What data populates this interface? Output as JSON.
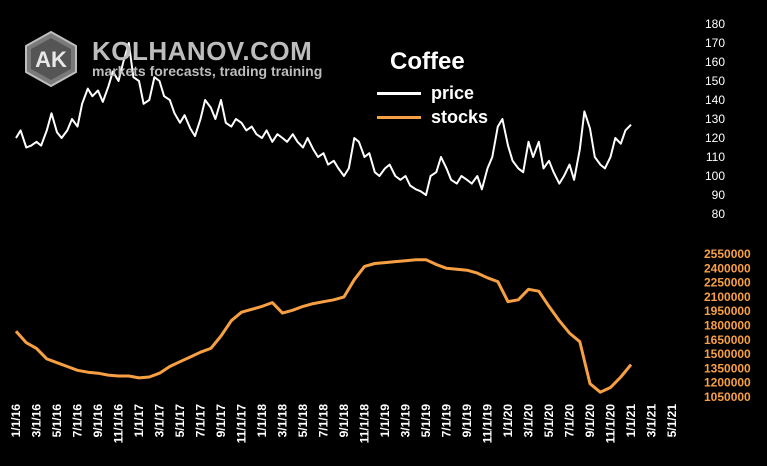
{
  "brand": {
    "logo_text": "AK",
    "name": "KOLHANOV.COM",
    "tagline": "markets forecasts, trading training"
  },
  "colors": {
    "background": "#000000",
    "price": "#ffffff",
    "stocks": "#f7a043",
    "price_axis": "#ffffff",
    "stocks_axis": "#f7a043",
    "brand_text": "#bdbdbd"
  },
  "chart_data": {
    "type": "line",
    "title": "Coffee",
    "legend": {
      "placement": "top-center"
    },
    "grid": false,
    "x_ticks": [
      "1/1/16",
      "3/1/16",
      "5/1/16",
      "7/1/16",
      "9/1/16",
      "11/1/16",
      "1/1/17",
      "3/1/17",
      "5/1/17",
      "7/1/17",
      "9/1/17",
      "11/1/17",
      "1/1/18",
      "3/1/18",
      "5/1/18",
      "7/1/18",
      "9/1/18",
      "11/1/18",
      "1/1/19",
      "3/1/19",
      "5/1/19",
      "7/1/19",
      "9/1/19",
      "11/1/19",
      "1/1/20",
      "3/1/20",
      "5/1/20",
      "7/1/20",
      "9/1/20",
      "11/1/20",
      "1/1/21",
      "3/1/21",
      "5/1/21"
    ],
    "price_axis": {
      "ylim": [
        80,
        180
      ],
      "ticks": [
        180,
        170,
        160,
        150,
        140,
        130,
        120,
        110,
        100,
        90,
        80
      ]
    },
    "stocks_axis": {
      "ylim": [
        1050000,
        2550000
      ],
      "ticks": [
        2550000,
        2400000,
        2250000,
        2100000,
        1950000,
        1800000,
        1650000,
        1500000,
        1350000,
        1200000,
        1050000
      ]
    },
    "series": [
      {
        "name": "price",
        "axis": "price",
        "values": [
          [
            "1/1/16",
            120
          ],
          [
            "1/15/16",
            124
          ],
          [
            "2/1/16",
            115
          ],
          [
            "2/15/16",
            116
          ],
          [
            "3/1/16",
            118
          ],
          [
            "3/15/16",
            116
          ],
          [
            "4/1/16",
            124
          ],
          [
            "4/15/16",
            133
          ],
          [
            "5/1/16",
            123
          ],
          [
            "5/15/16",
            120
          ],
          [
            "6/1/16",
            124
          ],
          [
            "6/15/16",
            130
          ],
          [
            "7/1/16",
            126
          ],
          [
            "7/15/16",
            138
          ],
          [
            "8/1/16",
            146
          ],
          [
            "8/15/16",
            142
          ],
          [
            "9/1/16",
            145
          ],
          [
            "9/15/16",
            139
          ],
          [
            "10/1/16",
            147
          ],
          [
            "10/15/16",
            155
          ],
          [
            "11/1/16",
            150
          ],
          [
            "11/15/16",
            160
          ],
          [
            "12/1/16",
            170
          ],
          [
            "12/15/16",
            152
          ],
          [
            "1/1/17",
            150
          ],
          [
            "1/15/17",
            138
          ],
          [
            "2/1/17",
            140
          ],
          [
            "2/15/17",
            152
          ],
          [
            "3/1/17",
            150
          ],
          [
            "3/15/17",
            142
          ],
          [
            "4/1/17",
            140
          ],
          [
            "4/15/17",
            133
          ],
          [
            "5/1/17",
            128
          ],
          [
            "5/15/17",
            132
          ],
          [
            "6/1/17",
            125
          ],
          [
            "6/15/17",
            121
          ],
          [
            "7/1/17",
            130
          ],
          [
            "7/15/17",
            140
          ],
          [
            "8/1/17",
            136
          ],
          [
            "8/15/17",
            130
          ],
          [
            "9/1/17",
            140
          ],
          [
            "9/15/17",
            128
          ],
          [
            "10/1/17",
            126
          ],
          [
            "10/15/17",
            130
          ],
          [
            "11/1/17",
            128
          ],
          [
            "11/15/17",
            124
          ],
          [
            "12/1/17",
            126
          ],
          [
            "12/15/17",
            122
          ],
          [
            "1/1/18",
            120
          ],
          [
            "1/15/18",
            124
          ],
          [
            "2/1/18",
            118
          ],
          [
            "2/15/18",
            122
          ],
          [
            "3/1/18",
            120
          ],
          [
            "3/15/18",
            118
          ],
          [
            "4/1/18",
            122
          ],
          [
            "4/15/18",
            118
          ],
          [
            "5/1/18",
            115
          ],
          [
            "5/15/18",
            120
          ],
          [
            "6/1/18",
            114
          ],
          [
            "6/15/18",
            110
          ],
          [
            "7/1/18",
            112
          ],
          [
            "7/15/18",
            106
          ],
          [
            "8/1/18",
            108
          ],
          [
            "8/15/18",
            104
          ],
          [
            "9/1/18",
            100
          ],
          [
            "9/15/18",
            104
          ],
          [
            "10/1/18",
            120
          ],
          [
            "10/15/18",
            118
          ],
          [
            "11/1/18",
            110
          ],
          [
            "11/15/18",
            112
          ],
          [
            "12/1/18",
            102
          ],
          [
            "12/15/18",
            100
          ],
          [
            "1/1/19",
            104
          ],
          [
            "1/15/19",
            106
          ],
          [
            "2/1/19",
            100
          ],
          [
            "2/15/19",
            98
          ],
          [
            "3/1/19",
            100
          ],
          [
            "3/15/19",
            95
          ],
          [
            "4/1/19",
            93
          ],
          [
            "4/15/19",
            92
          ],
          [
            "5/1/19",
            90
          ],
          [
            "5/15/19",
            100
          ],
          [
            "6/1/19",
            102
          ],
          [
            "6/15/19",
            110
          ],
          [
            "7/1/19",
            104
          ],
          [
            "7/15/19",
            98
          ],
          [
            "8/1/19",
            96
          ],
          [
            "8/15/19",
            100
          ],
          [
            "9/1/19",
            98
          ],
          [
            "9/15/19",
            96
          ],
          [
            "10/1/19",
            100
          ],
          [
            "10/15/19",
            93
          ],
          [
            "11/1/19",
            104
          ],
          [
            "11/15/19",
            110
          ],
          [
            "12/1/19",
            126
          ],
          [
            "12/15/19",
            130
          ],
          [
            "1/1/20",
            116
          ],
          [
            "1/15/20",
            108
          ],
          [
            "2/1/20",
            104
          ],
          [
            "2/15/20",
            102
          ],
          [
            "3/1/20",
            118
          ],
          [
            "3/15/20",
            110
          ],
          [
            "4/1/20",
            118
          ],
          [
            "4/15/20",
            104
          ],
          [
            "5/1/20",
            108
          ],
          [
            "5/15/20",
            102
          ],
          [
            "6/1/20",
            96
          ],
          [
            "6/15/20",
            100
          ],
          [
            "7/1/20",
            106
          ],
          [
            "7/15/20",
            98
          ],
          [
            "8/1/20",
            114
          ],
          [
            "8/15/20",
            134
          ],
          [
            "9/1/20",
            125
          ],
          [
            "9/15/20",
            110
          ],
          [
            "10/1/20",
            106
          ],
          [
            "10/15/20",
            104
          ],
          [
            "11/1/20",
            110
          ],
          [
            "11/15/20",
            120
          ],
          [
            "12/1/20",
            117
          ],
          [
            "12/15/20",
            124
          ],
          [
            "1/1/21",
            127
          ]
        ]
      },
      {
        "name": "stocks",
        "axis": "stocks",
        "values": [
          [
            "1/1/16",
            1740000
          ],
          [
            "2/1/16",
            1620000
          ],
          [
            "3/1/16",
            1560000
          ],
          [
            "4/1/16",
            1450000
          ],
          [
            "5/1/16",
            1410000
          ],
          [
            "6/1/16",
            1370000
          ],
          [
            "7/1/16",
            1330000
          ],
          [
            "8/1/16",
            1310000
          ],
          [
            "9/1/16",
            1300000
          ],
          [
            "10/1/16",
            1280000
          ],
          [
            "11/1/16",
            1270000
          ],
          [
            "12/1/16",
            1270000
          ],
          [
            "1/1/17",
            1250000
          ],
          [
            "2/1/17",
            1260000
          ],
          [
            "3/1/17",
            1300000
          ],
          [
            "4/1/17",
            1370000
          ],
          [
            "5/1/17",
            1420000
          ],
          [
            "6/1/17",
            1470000
          ],
          [
            "7/1/17",
            1520000
          ],
          [
            "8/1/17",
            1560000
          ],
          [
            "9/1/17",
            1690000
          ],
          [
            "10/1/17",
            1850000
          ],
          [
            "11/1/17",
            1940000
          ],
          [
            "12/1/17",
            1970000
          ],
          [
            "1/1/18",
            2000000
          ],
          [
            "2/1/18",
            2040000
          ],
          [
            "3/1/18",
            1930000
          ],
          [
            "4/1/18",
            1960000
          ],
          [
            "5/1/18",
            2000000
          ],
          [
            "6/1/18",
            2030000
          ],
          [
            "7/1/18",
            2050000
          ],
          [
            "8/1/18",
            2070000
          ],
          [
            "9/1/18",
            2100000
          ],
          [
            "10/1/18",
            2280000
          ],
          [
            "11/1/18",
            2420000
          ],
          [
            "12/1/18",
            2450000
          ],
          [
            "1/1/19",
            2460000
          ],
          [
            "2/1/19",
            2470000
          ],
          [
            "3/1/19",
            2480000
          ],
          [
            "4/1/19",
            2490000
          ],
          [
            "5/1/19",
            2490000
          ],
          [
            "6/1/19",
            2440000
          ],
          [
            "7/1/19",
            2400000
          ],
          [
            "8/1/19",
            2390000
          ],
          [
            "9/1/19",
            2380000
          ],
          [
            "10/1/19",
            2350000
          ],
          [
            "11/1/19",
            2300000
          ],
          [
            "12/1/19",
            2260000
          ],
          [
            "1/1/20",
            2050000
          ],
          [
            "2/1/20",
            2070000
          ],
          [
            "3/1/20",
            2180000
          ],
          [
            "4/1/20",
            2160000
          ],
          [
            "5/1/20",
            2000000
          ],
          [
            "6/1/20",
            1850000
          ],
          [
            "7/1/20",
            1720000
          ],
          [
            "8/1/20",
            1630000
          ],
          [
            "9/1/20",
            1190000
          ],
          [
            "10/1/20",
            1100000
          ],
          [
            "11/1/20",
            1150000
          ],
          [
            "12/1/20",
            1260000
          ],
          [
            "1/1/21",
            1390000
          ]
        ]
      }
    ]
  }
}
